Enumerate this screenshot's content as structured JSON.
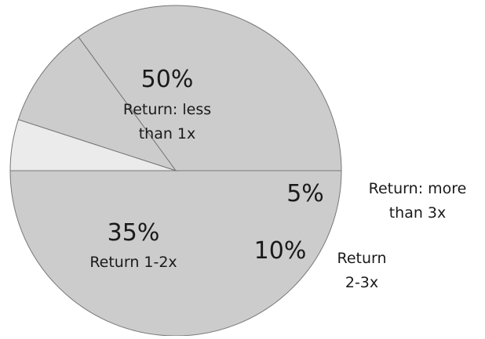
{
  "chart_data": {
    "type": "pie",
    "title": "",
    "series": [
      {
        "values": [
          50,
          35,
          10,
          5
        ],
        "categories": [
          "Return: less than 1x",
          "Return 1-2x",
          "Return 2-3x",
          "Return: more than 3x"
        ],
        "percent_labels": [
          "50%",
          "35%",
          "10%",
          "5%"
        ],
        "label_lines": [
          [
            "Return: less",
            "than 1x"
          ],
          [
            "Return 1-2x"
          ],
          [
            "Return",
            "2-3x"
          ],
          [
            "Return: more",
            "than 3x"
          ]
        ],
        "colors": [
          "#cccccc",
          "#cccccc",
          "#cccccc",
          "#ebebeb"
        ]
      }
    ],
    "legend": "none",
    "start_angle_deg": 180,
    "direction": "counterclockwise"
  }
}
